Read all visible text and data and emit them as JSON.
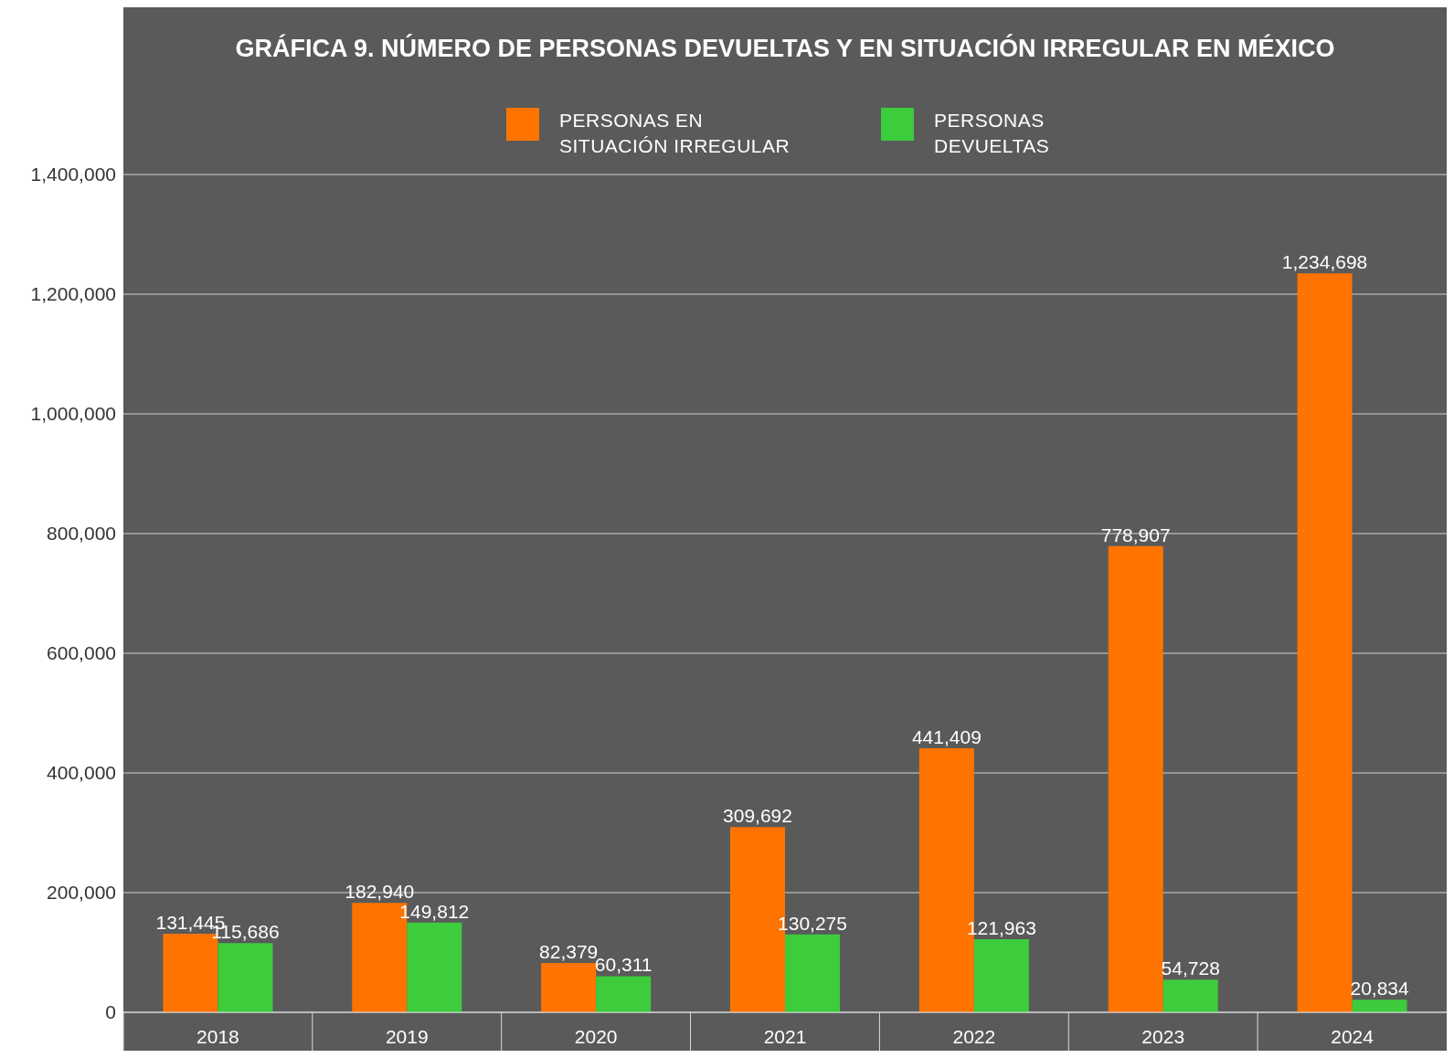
{
  "chart_data": {
    "type": "bar",
    "title": "GRÁFICA 9. NÚMERO DE PERSONAS DEVUELTAS Y EN SITUACIÓN IRREGULAR EN MÉXICO",
    "categories": [
      "2018",
      "2019",
      "2020",
      "2021",
      "2022",
      "2023",
      "2024"
    ],
    "series": [
      {
        "name": "PERSONAS EN SITUACIÓN IRREGULAR",
        "color": "#ff7400",
        "values": [
          131445,
          182940,
          82379,
          309692,
          441409,
          778907,
          1234698
        ],
        "value_labels": [
          "131,445",
          "182,940",
          "82,379",
          "309,692",
          "441,409",
          "778,907",
          "1,234,698"
        ]
      },
      {
        "name": "PERSONAS DEVUELTAS",
        "color": "#3ccc3c",
        "values": [
          115686,
          149812,
          60311,
          130275,
          121963,
          54728,
          20834
        ],
        "value_labels": [
          "115,686",
          "149,812",
          "60,311",
          "130,275",
          "121,963",
          "54,728",
          "20,834"
        ]
      }
    ],
    "ylim": [
      0,
      1400000
    ],
    "yticks": [
      {
        "value": 0,
        "label": "0"
      },
      {
        "value": 200000,
        "label": "200,000"
      },
      {
        "value": 400000,
        "label": "400,000"
      },
      {
        "value": 600000,
        "label": "600,000"
      },
      {
        "value": 800000,
        "label": "800,000"
      },
      {
        "value": 1000000,
        "label": "1,000,000"
      },
      {
        "value": 1200000,
        "label": "1,200,000"
      },
      {
        "value": 1400000,
        "label": "1,400,000"
      }
    ],
    "grid": "y",
    "legend": "top"
  }
}
